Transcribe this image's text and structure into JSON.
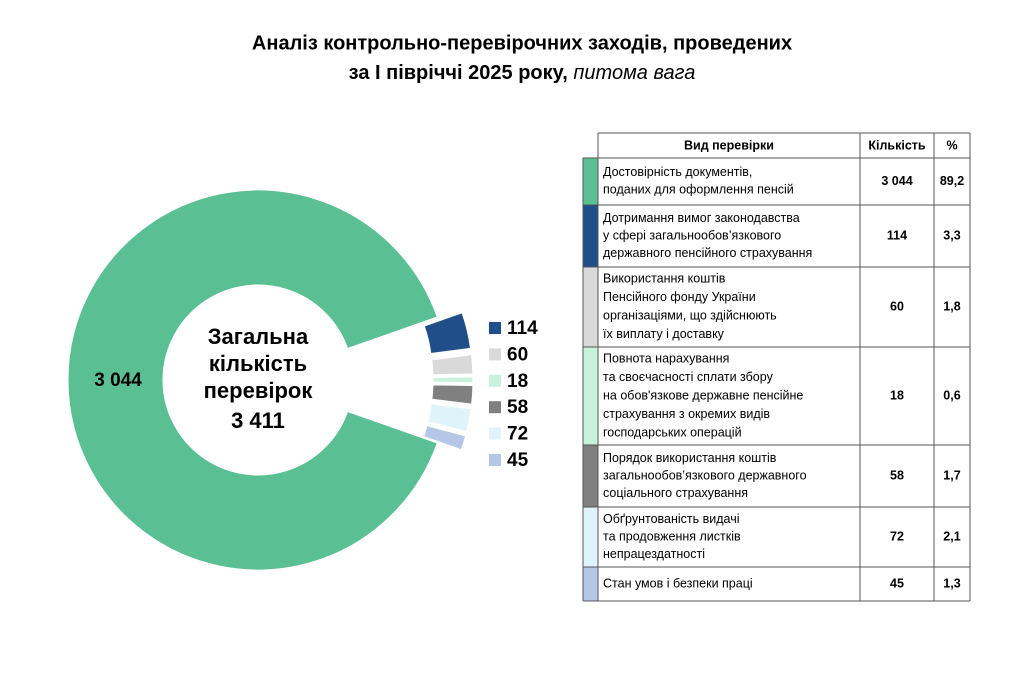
{
  "chart_data": {
    "type": "pie",
    "title": [
      "Аналіз контрольно-перевірочних заходів, проведених",
      "за І півріччі 2025 року,"
    ],
    "subtitle": "питома вага",
    "center_label": [
      "Загальна",
      "кількість",
      "перевірок"
    ],
    "total": 3411,
    "total_label": "3 411",
    "values": [
      3044,
      114,
      60,
      18,
      58,
      72,
      45
    ],
    "value_labels": [
      "3 044",
      "114",
      "60",
      "18",
      "58",
      "72",
      "45"
    ],
    "colors": [
      "#5bbf94",
      "#1f4e88",
      "#d9d9d9",
      "#c9f2dc",
      "#808080",
      "#dff3fa",
      "#b4c7e7"
    ]
  },
  "table": {
    "header": [
      "Вид перевірки",
      "Кількість",
      "%"
    ],
    "rows": [
      {
        "label": [
          "Достовірність документів,",
          "поданих для оформлення пенсій"
        ],
        "count": "3 044",
        "share": "89,2"
      },
      {
        "label": [
          "Дотримання вимог законодавства",
          "у сфері загальнообов’язкового",
          "державного пенсійного страхування"
        ],
        "count": "114",
        "share": "3,3"
      },
      {
        "label": [
          "Використання коштів",
          "Пенсійного фонду України",
          "організаціями, що здійснюють",
          "їх виплату і доставку"
        ],
        "count": "60",
        "share": "1,8"
      },
      {
        "label": [
          "Повнота нарахування",
          "та своєчасності сплати збору",
          "на обов'язкове державне пенсійне",
          "страхування з окремих видів",
          "господарських операцій"
        ],
        "count": "18",
        "share": "0,6"
      },
      {
        "label": [
          "Порядок використання коштів",
          "загальнообов’язкового державного",
          "соціального страхування"
        ],
        "count": "58",
        "share": "1,7"
      },
      {
        "label": [
          "Обґрунтованість видачі",
          "та продовження листків",
          "непрацездатності"
        ],
        "count": "72",
        "share": "2,1"
      },
      {
        "label": [
          "Стан умов і безпеки праці"
        ],
        "count": "45",
        "share": "1,3"
      }
    ]
  }
}
